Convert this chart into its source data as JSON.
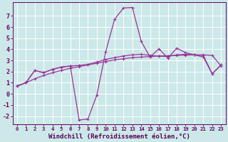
{
  "xlabel": "Windchill (Refroidissement éolien,°C)",
  "bg_color": "#cce8e8",
  "line_color": "#993399",
  "grid_color": "#ffffff",
  "xlim": [
    -0.5,
    23.5
  ],
  "ylim": [
    -2.7,
    8.2
  ],
  "xticks": [
    0,
    1,
    2,
    3,
    4,
    5,
    6,
    7,
    8,
    9,
    10,
    11,
    12,
    13,
    14,
    15,
    16,
    17,
    18,
    19,
    20,
    21,
    22,
    23
  ],
  "yticks": [
    -2,
    -1,
    0,
    1,
    2,
    3,
    4,
    5,
    6,
    7
  ],
  "s1_x": [
    0,
    1,
    2,
    3,
    4,
    5,
    6,
    7,
    8,
    9,
    10,
    11,
    12,
    13,
    14,
    15,
    16,
    17,
    18,
    19,
    20,
    21,
    22,
    23
  ],
  "s1_y": [
    0.7,
    1.0,
    1.35,
    1.65,
    1.9,
    2.1,
    2.3,
    2.45,
    2.6,
    2.75,
    2.9,
    3.05,
    3.15,
    3.25,
    3.3,
    3.35,
    3.4,
    3.42,
    3.45,
    3.48,
    3.5,
    3.5,
    3.45,
    2.5
  ],
  "s2_x": [
    0,
    1,
    2,
    3,
    4,
    5,
    6,
    7,
    8,
    9,
    10,
    11,
    12,
    13,
    14,
    15,
    16,
    17,
    18,
    19,
    20,
    21,
    22,
    23
  ],
  "s2_y": [
    0.7,
    1.0,
    2.1,
    1.9,
    2.2,
    2.4,
    2.5,
    2.55,
    2.65,
    2.85,
    3.1,
    3.25,
    3.4,
    3.5,
    3.55,
    3.45,
    3.38,
    3.35,
    3.5,
    3.55,
    3.5,
    3.45,
    1.8,
    2.6
  ],
  "s3_x": [
    0,
    1,
    2,
    3,
    4,
    5,
    6,
    7,
    8,
    9,
    10,
    11,
    12,
    13,
    14,
    15,
    16,
    17,
    18,
    19,
    20,
    21,
    22,
    23
  ],
  "s3_y": [
    0.7,
    1.0,
    2.1,
    1.9,
    2.2,
    2.4,
    2.5,
    -2.35,
    -2.25,
    -0.1,
    3.8,
    6.7,
    7.7,
    7.75,
    4.7,
    3.3,
    4.05,
    3.2,
    4.1,
    3.7,
    3.5,
    3.3,
    1.8,
    2.6
  ],
  "xlabel_fontsize": 6.5,
  "tick_fontsize": 6.0,
  "lw": 0.9,
  "ms": 2.5
}
